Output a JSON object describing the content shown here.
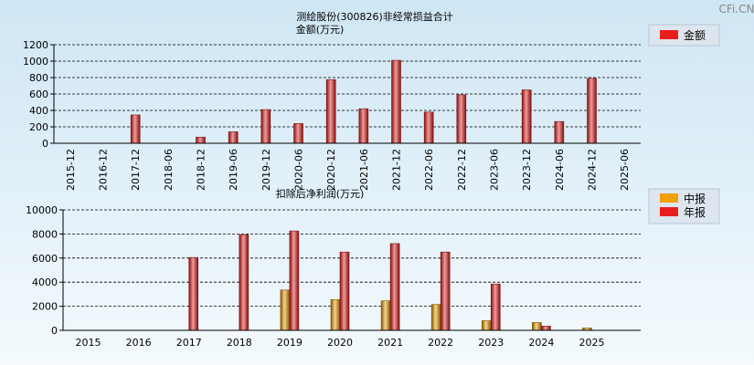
{
  "watermark": "CFi.CN",
  "chart_data": [
    {
      "type": "bar",
      "title": "测绘股份(300826)非经常损益合计",
      "subtitle": "金额(万元)",
      "categories": [
        "2015-12",
        "2016-12",
        "2017-12",
        "2018-06",
        "2018-12",
        "2019-06",
        "2019-12",
        "2020-06",
        "2020-12",
        "2021-06",
        "2021-12",
        "2022-06",
        "2022-12",
        "2023-06",
        "2023-12",
        "2024-06",
        "2024-12",
        "2025-06"
      ],
      "series": [
        {
          "name": "金额",
          "color": "#e81e1e",
          "values": [
            0,
            0,
            345,
            0,
            75,
            140,
            410,
            240,
            775,
            420,
            1010,
            380,
            590,
            0,
            650,
            265,
            790,
            0
          ]
        }
      ],
      "ylim": [
        0,
        1200
      ],
      "yticks": [
        0,
        200,
        400,
        600,
        800,
        1000,
        1200
      ],
      "grid": true,
      "legend": "top-right"
    },
    {
      "type": "bar",
      "title": "扣除后净利润(万元)",
      "categories": [
        "2015",
        "2016",
        "2017",
        "2018",
        "2019",
        "2020",
        "2021",
        "2022",
        "2023",
        "2024",
        "2025"
      ],
      "series": [
        {
          "name": "中报",
          "color": "#f0a000",
          "values": [
            null,
            null,
            null,
            null,
            3350,
            2550,
            2450,
            2150,
            800,
            650,
            200
          ]
        },
        {
          "name": "年报",
          "color": "#e81e1e",
          "values": [
            null,
            null,
            6050,
            7950,
            8250,
            6500,
            7200,
            6500,
            3850,
            350,
            null
          ]
        }
      ],
      "ylim": [
        0,
        10000
      ],
      "yticks": [
        0,
        2000,
        4000,
        6000,
        8000,
        10000
      ],
      "grid": true,
      "legend": "top-right"
    }
  ]
}
